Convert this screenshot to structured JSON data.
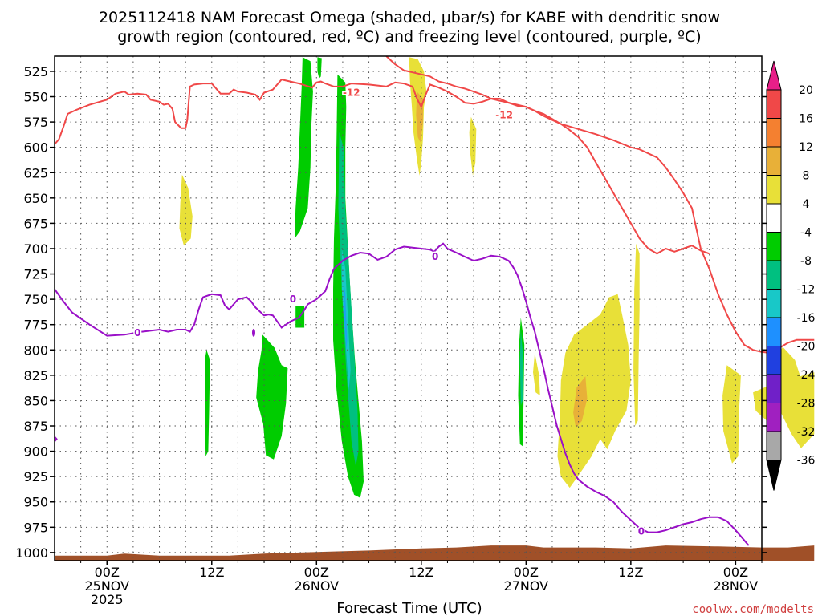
{
  "chart_data": {
    "type": "time-height cross section",
    "title_line1": "2025112418 NAM Forecast Omega (shaded, μbar/s) for KABE with dendritic snow",
    "title_line2": "growth region (contoured, red, ºC) and freezing level (contoured, purple, ºC)",
    "xlabel": "Forecast Time (UTC)",
    "credit": "coolwx.com/modelts",
    "x_range_hours": [
      -6,
      75
    ],
    "x_ticks": [
      {
        "hour": 0,
        "label": "00Z",
        "sub1": "25NOV",
        "sub2": "2025"
      },
      {
        "hour": 12,
        "label": "12Z",
        "sub1": "",
        "sub2": ""
      },
      {
        "hour": 24,
        "label": "00Z",
        "sub1": "26NOV",
        "sub2": ""
      },
      {
        "hour": 36,
        "label": "12Z",
        "sub1": "",
        "sub2": ""
      },
      {
        "hour": 48,
        "label": "00Z",
        "sub1": "27NOV",
        "sub2": ""
      },
      {
        "hour": 60,
        "label": "12Z",
        "sub1": "",
        "sub2": ""
      },
      {
        "hour": 72,
        "label": "00Z",
        "sub1": "28NOV",
        "sub2": ""
      }
    ],
    "y_ticks": [
      525,
      550,
      575,
      600,
      625,
      650,
      675,
      700,
      725,
      750,
      775,
      800,
      825,
      850,
      875,
      900,
      925,
      950,
      975,
      1000
    ],
    "y_range_mb": [
      510,
      1008
    ],
    "colorbar": {
      "labels": [
        "20",
        "16",
        "12",
        "8",
        "4",
        "-4",
        "-8",
        "-12",
        "-16",
        "-20",
        "-24",
        "-28",
        "-32",
        "-36"
      ],
      "bins": [
        "#e81f88",
        "#f04848",
        "#f48030",
        "#e8b038",
        "#e8e038",
        "#ffffff",
        "#00cc00",
        "#00c080",
        "#18c8c8",
        "#1e90ff",
        "#2040e0",
        "#7020c8",
        "#a020c0",
        "#a8a8a8",
        "#000000"
      ]
    },
    "series": [
      {
        "name": "-12C contour (dendritic growth region)",
        "color": "#f04848",
        "label": "-12",
        "segments": [
          [
            [
              -6,
              597
            ],
            [
              -5.5,
              592
            ],
            [
              -5,
              580
            ],
            [
              -4.5,
              567
            ],
            [
              -3.5,
              563
            ],
            [
              -2,
              558
            ],
            [
              0,
              553
            ],
            [
              1,
              547
            ],
            [
              2,
              545
            ],
            [
              2.5,
              548
            ],
            [
              3.5,
              547
            ],
            [
              4.5,
              548
            ],
            [
              5,
              553
            ],
            [
              6,
              555
            ],
            [
              6.5,
              558
            ],
            [
              7,
              557
            ],
            [
              7.5,
              562
            ],
            [
              7.8,
              575
            ],
            [
              8.5,
              581
            ],
            [
              9,
              581
            ],
            [
              9.2,
              573
            ],
            [
              9.5,
              540
            ],
            [
              10,
              538
            ],
            [
              11,
              537
            ],
            [
              12,
              537
            ],
            [
              13,
              547
            ],
            [
              14,
              547
            ],
            [
              14.5,
              543
            ],
            [
              15,
              545
            ],
            [
              16,
              546
            ],
            [
              17,
              548
            ],
            [
              17.5,
              553
            ],
            [
              18,
              546
            ],
            [
              19,
              543
            ],
            [
              20,
              533
            ],
            [
              21,
              535
            ],
            [
              22,
              537
            ],
            [
              23.5,
              541
            ],
            [
              24,
              536
            ],
            [
              24.5,
              535
            ],
            [
              25,
              537
            ],
            [
              26,
              540
            ],
            [
              27,
              540
            ],
            [
              28,
              537
            ],
            [
              30,
              538
            ],
            [
              32,
              540
            ],
            [
              33,
              536
            ],
            [
              34,
              537
            ],
            [
              35,
              540
            ],
            [
              35.5,
              552
            ],
            [
              36,
              560
            ],
            [
              36.5,
              548
            ],
            [
              37,
              538
            ],
            [
              38,
              541
            ],
            [
              39,
              545
            ],
            [
              40,
              550
            ],
            [
              41,
              556
            ],
            [
              42,
              557
            ],
            [
              43,
              555
            ],
            [
              44,
              552
            ],
            [
              45,
              552
            ],
            [
              46,
              556
            ],
            [
              47,
              559
            ],
            [
              48,
              560
            ],
            [
              49,
              564
            ],
            [
              50,
              569
            ],
            [
              51,
              573
            ],
            [
              52,
              577
            ],
            [
              54,
              582
            ],
            [
              56,
              587
            ],
            [
              58,
              593
            ],
            [
              60,
              600
            ],
            [
              61,
              602
            ],
            [
              63,
              610
            ],
            [
              64,
              620
            ],
            [
              65,
              632
            ],
            [
              66,
              645
            ],
            [
              67,
              660
            ],
            [
              67.5,
              680
            ],
            [
              68,
              700
            ],
            [
              69,
              720
            ],
            [
              70,
              745
            ],
            [
              71,
              765
            ],
            [
              72,
              782
            ],
            [
              73,
              795
            ],
            [
              74,
              800
            ],
            [
              75,
              802
            ],
            [
              76,
              803
            ],
            [
              77,
              798
            ],
            [
              78,
              793
            ],
            [
              79,
              790
            ],
            [
              80,
              790
            ],
            [
              81,
              790
            ]
          ],
          [
            [
              32,
              510
            ],
            [
              32.5,
              514
            ],
            [
              33,
              518
            ],
            [
              33.5,
              521
            ],
            [
              34,
              524
            ],
            [
              35,
              526
            ],
            [
              36,
              528
            ],
            [
              37,
              530
            ],
            [
              38,
              535
            ],
            [
              39,
              537
            ],
            [
              40,
              540
            ],
            [
              41,
              542
            ],
            [
              42,
              545
            ],
            [
              43,
              548
            ],
            [
              44,
              552
            ],
            [
              45,
              554
            ],
            [
              46,
              556
            ],
            [
              47,
              558
            ],
            [
              48,
              560
            ],
            [
              49,
              564
            ],
            [
              50,
              567
            ],
            [
              51,
              572
            ],
            [
              52,
              577
            ],
            [
              53,
              583
            ],
            [
              54,
              590
            ],
            [
              55,
              600
            ],
            [
              56,
              615
            ],
            [
              57,
              630
            ],
            [
              58,
              645
            ],
            [
              59,
              660
            ],
            [
              60,
              675
            ],
            [
              61,
              690
            ],
            [
              62,
              700
            ],
            [
              63,
              705
            ],
            [
              64,
              700
            ],
            [
              65,
              703
            ],
            [
              66,
              700
            ],
            [
              67,
              697
            ],
            [
              68,
              702
            ],
            [
              69,
              705
            ]
          ]
        ]
      },
      {
        "name": "0C contour (freezing level)",
        "color": "#9a10c8",
        "label": "0",
        "points": [
          [
            -6,
            740
          ],
          [
            -5,
            752
          ],
          [
            -4,
            763
          ],
          [
            -2,
            775
          ],
          [
            0,
            786
          ],
          [
            2,
            785
          ],
          [
            4,
            782
          ],
          [
            6,
            780
          ],
          [
            7,
            782
          ],
          [
            8,
            780
          ],
          [
            9,
            780
          ],
          [
            9.5,
            782
          ],
          [
            10,
            775
          ],
          [
            10.5,
            760
          ],
          [
            11,
            748
          ],
          [
            12,
            745
          ],
          [
            13,
            746
          ],
          [
            13.5,
            756
          ],
          [
            14,
            760
          ],
          [
            15,
            750
          ],
          [
            16,
            748
          ],
          [
            16.5,
            752
          ],
          [
            17,
            758
          ],
          [
            18,
            766
          ],
          [
            18.5,
            765
          ],
          [
            19,
            766
          ],
          [
            19.5,
            772
          ],
          [
            20,
            778
          ],
          [
            21,
            772
          ],
          [
            22,
            768
          ],
          [
            22.5,
            762
          ],
          [
            23,
            755
          ],
          [
            24,
            750
          ],
          [
            25,
            742
          ],
          [
            25.5,
            730
          ],
          [
            26,
            720
          ],
          [
            27,
            712
          ],
          [
            28,
            707
          ],
          [
            29,
            704
          ],
          [
            30,
            705
          ],
          [
            31,
            711
          ],
          [
            32,
            708
          ],
          [
            33,
            701
          ],
          [
            34,
            698
          ],
          [
            35,
            699
          ],
          [
            36,
            700
          ],
          [
            37,
            701
          ],
          [
            37.5,
            703
          ],
          [
            38,
            698
          ],
          [
            38.5,
            695
          ],
          [
            39,
            700
          ],
          [
            40,
            704
          ],
          [
            41,
            708
          ],
          [
            42,
            712
          ],
          [
            43,
            710
          ],
          [
            44,
            707
          ],
          [
            45,
            708
          ],
          [
            46,
            712
          ],
          [
            46.5,
            718
          ],
          [
            47,
            726
          ],
          [
            47.5,
            738
          ],
          [
            48,
            752
          ],
          [
            48.5,
            768
          ],
          [
            49,
            782
          ],
          [
            49.5,
            800
          ],
          [
            50,
            818
          ],
          [
            50.5,
            838
          ],
          [
            51,
            856
          ],
          [
            51.5,
            874
          ],
          [
            52,
            888
          ],
          [
            52.5,
            902
          ],
          [
            53,
            913
          ],
          [
            53.5,
            922
          ],
          [
            54,
            928
          ],
          [
            55,
            935
          ],
          [
            56,
            940
          ],
          [
            57,
            944
          ],
          [
            58,
            950
          ],
          [
            59,
            960
          ],
          [
            60,
            968
          ],
          [
            61,
            976
          ],
          [
            62,
            980
          ],
          [
            63,
            980
          ],
          [
            64,
            978
          ],
          [
            65,
            975
          ],
          [
            66,
            972
          ],
          [
            67,
            970
          ],
          [
            68,
            967
          ],
          [
            69,
            965
          ],
          [
            70,
            965
          ],
          [
            71,
            969
          ],
          [
            72,
            978
          ],
          [
            73,
            988
          ],
          [
            73.5,
            993
          ]
        ]
      }
    ],
    "contour_labels": [
      "-12",
      "-12",
      "0",
      "0",
      "0"
    ],
    "omega_regions": [
      {
        "name": "ascent 26NOV 00Z core (-8 to -16)",
        "level": "-12",
        "color": "#00cc00"
      },
      {
        "name": "yellow sinking 27NOV",
        "level": "4",
        "color": "#e8e038"
      }
    ],
    "terrain": {
      "color": "#a05028"
    }
  }
}
